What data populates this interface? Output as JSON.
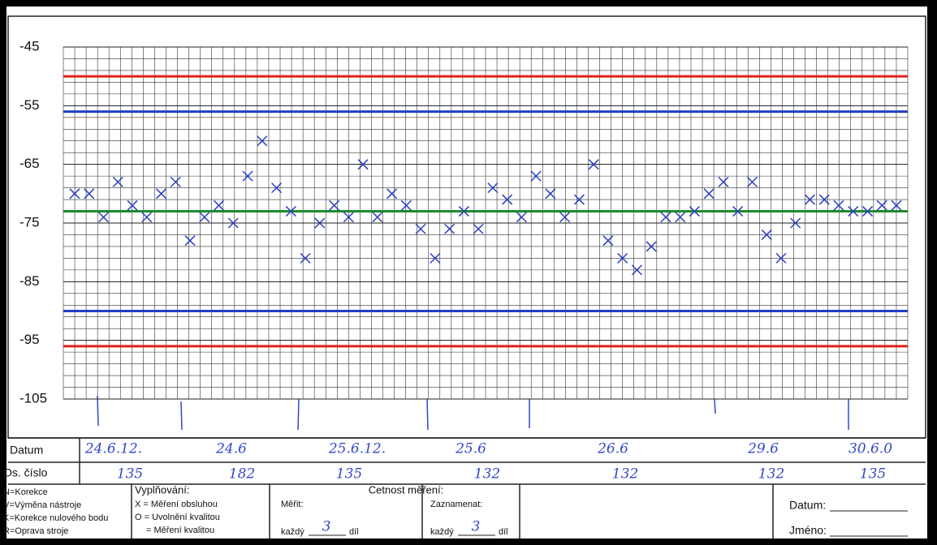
{
  "chart_data": {
    "type": "control",
    "ylim": [
      -45,
      -105
    ],
    "yticks": [
      -45,
      -55,
      -65,
      -75,
      -85,
      -95,
      -105
    ],
    "minor_step": 2,
    "grid": true,
    "color": "#2a3fbf",
    "limits": [
      {
        "value": -50,
        "color": "#e0201c"
      },
      {
        "value": -56,
        "color": "#1f3fc4"
      },
      {
        "value": -73,
        "color": "#1e8c2e"
      },
      {
        "value": -90,
        "color": "#1f3fc4"
      },
      {
        "value": -96,
        "color": "#e0201c"
      }
    ],
    "values": [
      -70,
      -70,
      -74,
      -68,
      -72,
      -74,
      -70,
      -68,
      -78,
      -74,
      -72,
      -75,
      -67,
      -61,
      -69,
      -73,
      -81,
      -75,
      -72,
      -74,
      -65,
      -74,
      -70,
      -72,
      -76,
      -81,
      -76,
      -73,
      -76,
      -69,
      -71,
      -74,
      -67,
      -70,
      -74,
      -71,
      -65,
      -78,
      -81,
      -83,
      -79,
      -74,
      -74,
      -73,
      -70,
      -68,
      -73,
      -68,
      -77,
      -81,
      -75,
      -71,
      -71,
      -72,
      -73,
      -73,
      -72,
      -72
    ]
  },
  "form": {
    "row_labels": [
      "Datum",
      "Os. číslo"
    ],
    "dates": [
      "24.6.12.",
      "24.6",
      "25.6.12.",
      "25.6",
      "26.6",
      "29.6",
      "30.6.0"
    ],
    "operators": [
      "135",
      "182",
      "135",
      "132",
      "132",
      "132",
      "135"
    ],
    "codes": [
      "N=Korekce",
      "V=Výměna nástroje",
      "K=Korekce nulového bodu",
      "R=Oprava stroje"
    ],
    "filling": {
      "title": "Vyplňování:",
      "items": [
        "X = Měření obsluhou",
        "O = Uvolnění kvalitou",
        "= Měření kvalitou"
      ]
    },
    "frequency": {
      "title": "Cetnost měření:",
      "measure": "Měřit:",
      "record": "Zaznamenat:",
      "every": "každý",
      "measure_n": "3",
      "record_n": "3",
      "part": "díl"
    },
    "sign": [
      "Datum:",
      "Jméno:"
    ]
  }
}
